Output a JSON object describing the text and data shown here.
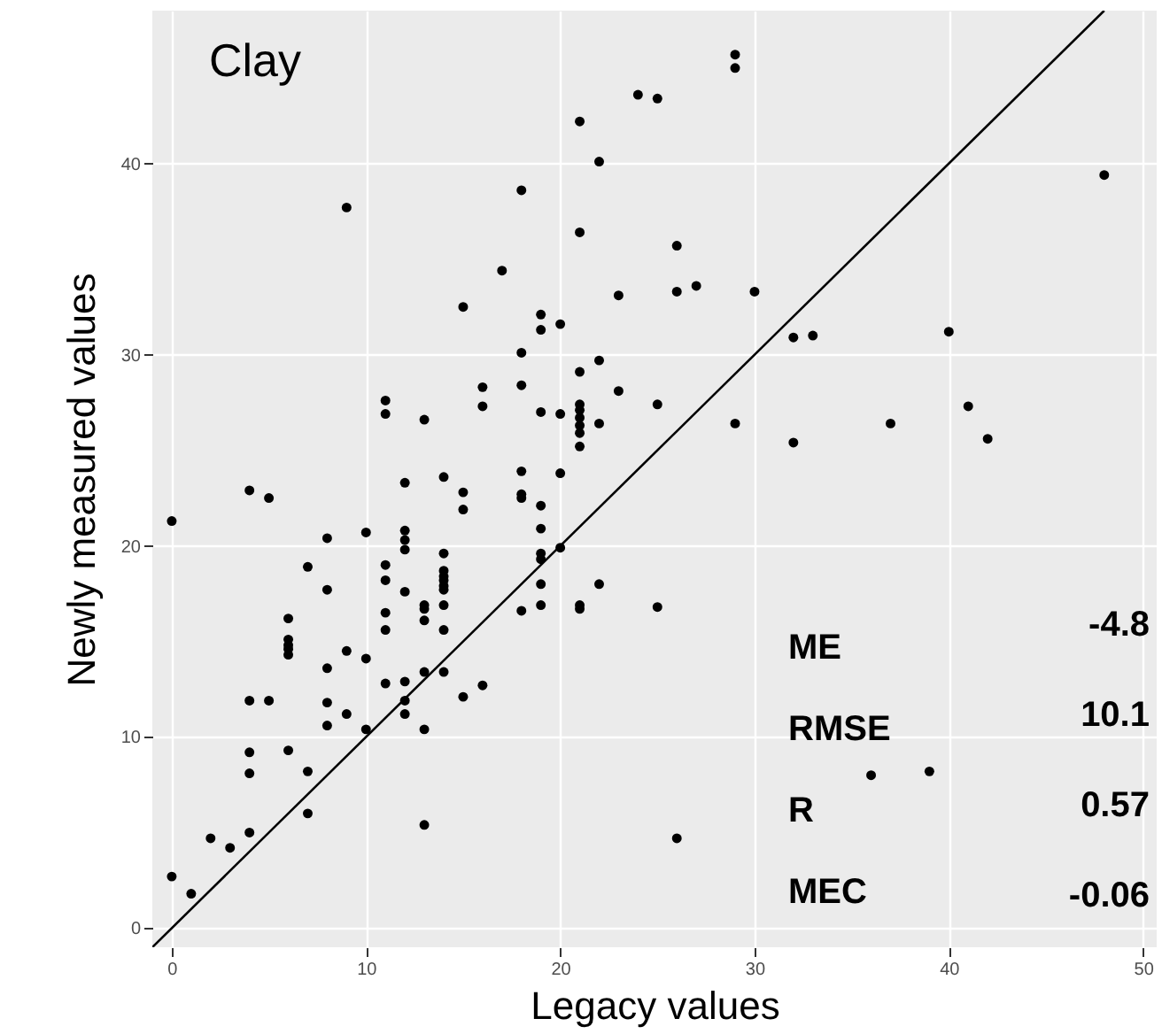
{
  "chart_data": {
    "type": "scatter",
    "title": "Clay",
    "xlabel": "Legacy values",
    "ylabel": "Newly measured values",
    "xlim": [
      -1,
      50.7
    ],
    "ylim": [
      -1,
      48
    ],
    "xticks": [
      0,
      10,
      20,
      30,
      40,
      50
    ],
    "yticks": [
      0,
      10,
      20,
      30,
      40
    ],
    "grid": true,
    "marker": "circle",
    "series": [
      {
        "color": "#000000",
        "x": [
          0,
          0,
          1,
          2,
          3,
          4,
          4,
          4,
          4,
          4,
          5,
          5,
          6,
          6,
          6,
          6,
          6,
          6,
          7,
          7,
          7,
          8,
          8,
          8,
          8,
          8,
          9,
          9,
          9,
          10,
          10,
          10,
          11,
          11,
          11,
          11,
          11,
          11,
          11,
          12,
          12,
          12,
          12,
          12,
          12,
          12,
          12,
          13,
          13,
          13,
          13,
          13,
          13,
          13,
          14,
          14,
          14,
          14,
          14,
          14,
          14,
          14,
          14,
          14,
          15,
          15,
          15,
          15,
          16,
          16,
          16,
          17,
          18,
          18,
          18,
          18,
          18,
          18,
          18,
          19,
          19,
          19,
          19,
          19,
          19,
          19,
          19,
          19,
          20,
          20,
          20,
          20,
          21,
          21,
          21,
          21,
          21,
          21,
          21,
          21,
          21,
          21,
          21,
          22,
          22,
          22,
          22,
          23,
          23,
          24,
          25,
          25,
          25,
          26,
          26,
          26,
          27,
          29,
          29,
          29,
          30,
          32,
          32,
          33,
          36,
          37,
          39,
          40,
          41,
          42,
          48
        ],
        "values": [
          21.3,
          2.7,
          1.8,
          4.7,
          4.2,
          22.9,
          11.9,
          9.2,
          8.1,
          5.0,
          22.5,
          11.9,
          16.2,
          15.1,
          14.8,
          14.6,
          14.3,
          9.3,
          18.9,
          8.2,
          6.0,
          20.4,
          17.7,
          13.6,
          11.8,
          10.6,
          37.7,
          14.5,
          11.2,
          20.7,
          14.1,
          10.4,
          27.6,
          26.9,
          19.0,
          18.2,
          16.5,
          15.6,
          12.8,
          23.3,
          20.8,
          20.3,
          19.8,
          17.6,
          12.9,
          11.9,
          11.2,
          26.6,
          16.9,
          16.7,
          16.1,
          13.4,
          10.4,
          5.4,
          23.6,
          19.6,
          18.7,
          18.4,
          18.2,
          17.9,
          17.7,
          16.9,
          15.6,
          13.4,
          32.5,
          22.8,
          21.9,
          12.1,
          28.3,
          27.3,
          12.7,
          34.4,
          38.6,
          30.1,
          28.4,
          23.9,
          22.7,
          22.5,
          16.6,
          32.1,
          31.3,
          27.0,
          22.1,
          20.9,
          19.6,
          19.3,
          18.0,
          16.9,
          31.6,
          26.9,
          23.8,
          19.9,
          42.2,
          36.4,
          29.1,
          27.4,
          27.1,
          26.7,
          26.3,
          25.9,
          25.2,
          16.9,
          16.7,
          40.1,
          29.7,
          26.4,
          18.0,
          33.1,
          28.1,
          43.6,
          43.4,
          27.4,
          16.8,
          35.7,
          33.3,
          4.7,
          33.6,
          45.7,
          45.0,
          26.4,
          33.3,
          30.9,
          25.4,
          31.0,
          8.0,
          26.4,
          8.2,
          31.2,
          27.3,
          25.6,
          39.4
        ]
      },
      {
        "type": "line",
        "color": "#000000",
        "line_style": "solid",
        "marker": "none",
        "x": [
          -1,
          48
        ],
        "values": [
          -1,
          48
        ]
      }
    ],
    "annotations": [
      "ME",
      "-4.8",
      "RMSE",
      "10.1",
      "R",
      "0.57",
      "MEC",
      "-0.06"
    ]
  }
}
